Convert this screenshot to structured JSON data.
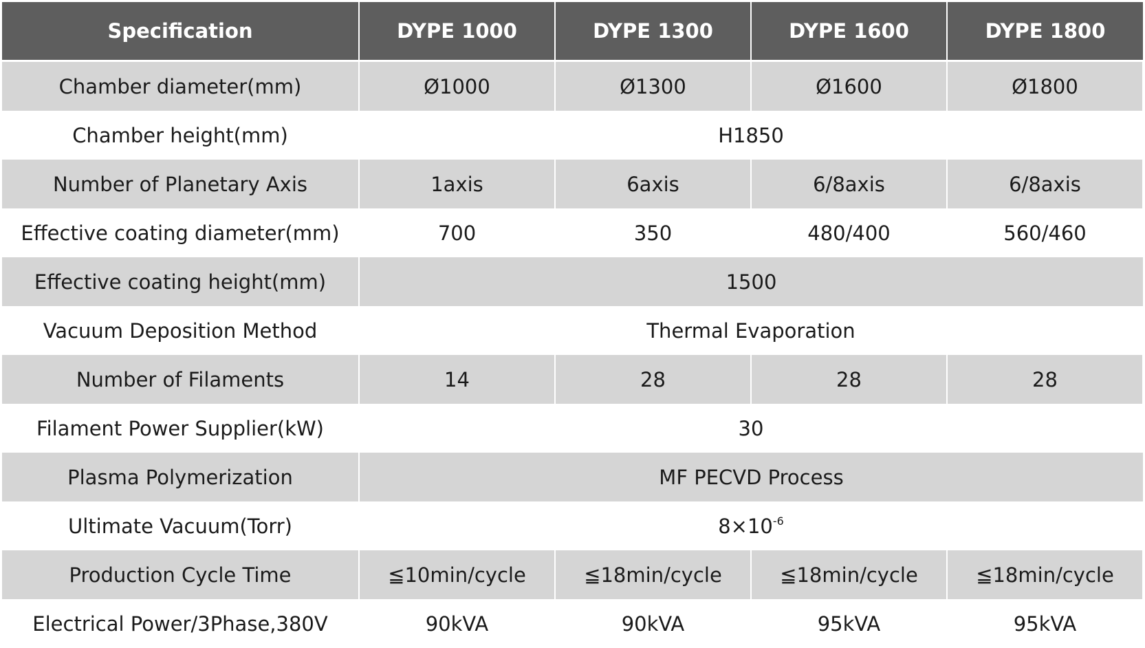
{
  "table": {
    "header": [
      "Specification",
      "DYPE 1000",
      "DYPE 1300",
      "DYPE 1600",
      "DYPE 1800"
    ],
    "rows": [
      {
        "label": "Chamber diameter(mm)",
        "cells": [
          "Ø1000",
          "Ø1300",
          "Ø1600",
          "Ø1800"
        ]
      },
      {
        "label": "Chamber height(mm)",
        "shared": "H1850"
      },
      {
        "label": "Number of Planetary Axis",
        "cells": [
          "1axis",
          "6axis",
          "6/8axis",
          "6/8axis"
        ]
      },
      {
        "label": "Effective coating diameter(mm)",
        "cells": [
          "700",
          "350",
          "480/400",
          "560/460"
        ]
      },
      {
        "label": "Effective coating height(mm)",
        "shared": "1500"
      },
      {
        "label": "Vacuum Deposition Method",
        "shared": "Thermal Evaporation"
      },
      {
        "label": "Number of Filaments",
        "cells": [
          "14",
          "28",
          "28",
          "28"
        ]
      },
      {
        "label": "Filament Power Supplier(kW)",
        "shared": "30"
      },
      {
        "label": "Plasma Polymerization",
        "shared": "MF PECVD Process"
      },
      {
        "label": "Ultimate Vacuum(Torr)",
        "shared_base": "8×10",
        "shared_exp": "-6"
      },
      {
        "label": "Production Cycle Time",
        "cells": [
          "≦10min/cycle",
          "≦18min/cycle",
          "≦18min/cycle",
          "≦18min/cycle"
        ]
      },
      {
        "label": "Electrical Power/3Phase,380V",
        "cells": [
          "90kVA",
          "90kVA",
          "95kVA",
          "95kVA"
        ]
      }
    ]
  }
}
